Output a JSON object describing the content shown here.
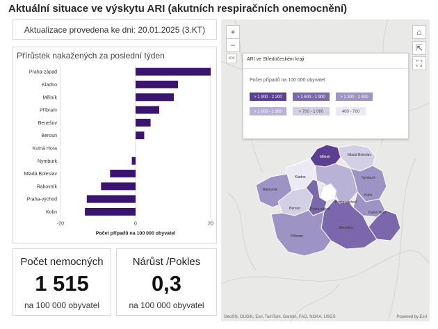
{
  "page": {
    "title": "Aktuální situace ve výskytu ARI (akutních respiračních onemocnění)",
    "update_text": "Aktualizace provedena ke dni: 20.01.2025 (3.KT)"
  },
  "kpis": {
    "sick": {
      "title": "Počet nemocných",
      "value": "1 515",
      "unit": "na 100 000 obyvatel"
    },
    "change": {
      "title": "Nárůst /Pokles",
      "value": "0,3",
      "unit": "na 100 000 obyvatel"
    }
  },
  "chart_data": {
    "type": "bar",
    "orientation": "horizontal",
    "title": "Přírůstek nakažených za poslední týden",
    "xlabel": "Počet případů na 100 000 obyvatel",
    "ylabel": "",
    "categories": [
      "Praha-západ",
      "Kladno",
      "Mělník",
      "Příbram",
      "Benešov",
      "Beroun",
      "Kutná Hora",
      "Nymburk",
      "Mladá Boleslav",
      "Rakovník",
      "Praha-východ",
      "Kolín"
    ],
    "values": [
      20,
      11.3,
      10.2,
      6.3,
      4,
      2.3,
      0,
      -1,
      -6.8,
      -9.2,
      -13,
      -13.5
    ],
    "xlim": [
      -20,
      20
    ],
    "xticks": [
      "-20",
      "0",
      "20"
    ],
    "bar_color": "#3b1370"
  },
  "map": {
    "legend_title": "ARI ve Středočeském kraji",
    "legend_subtitle": "Počet případů na 100 000 obyvatel",
    "legend_classes": [
      {
        "label": "> 1 900 - 2 200",
        "color": "#5a3f92"
      },
      {
        "label": "> 1 600 - 1 900",
        "color": "#7b68ac"
      },
      {
        "label": "> 1 300 - 1 600",
        "color": "#9e93c5"
      },
      {
        "label": "> 1 000 - 1 300",
        "color": "#b8b2d6"
      },
      {
        "label": "> 700 - 1 000",
        "color": "#d3d0e6"
      },
      {
        "label": "400 - 700",
        "color": "#ebe9f3"
      }
    ],
    "districts": {
      "melnik": "Mělník",
      "mlada_boleslav": "Mladá Boleslav",
      "kladno": "Kladno",
      "rakovnik": "Rakovník",
      "nymburk": "Nymburk",
      "praha_vychod": "Praha-východ",
      "kolin": "Kolín",
      "beroun": "Beroun",
      "praha_zapad": "Praha-západ",
      "kutna_hora": "Kutná Hora",
      "benesov": "Benešov",
      "pribram": "Příbram"
    },
    "controls": {
      "zoom_in": "+",
      "zoom_out": "−",
      "collapse": "<<",
      "home": "⌂",
      "export": "⇱",
      "fullscreen": "⛶"
    },
    "attribution": "GeoSN, GUGiK, Esri, TomTom, Garmin, FAO, NOAA, USGS",
    "powered_by": "Powered by Esri"
  }
}
